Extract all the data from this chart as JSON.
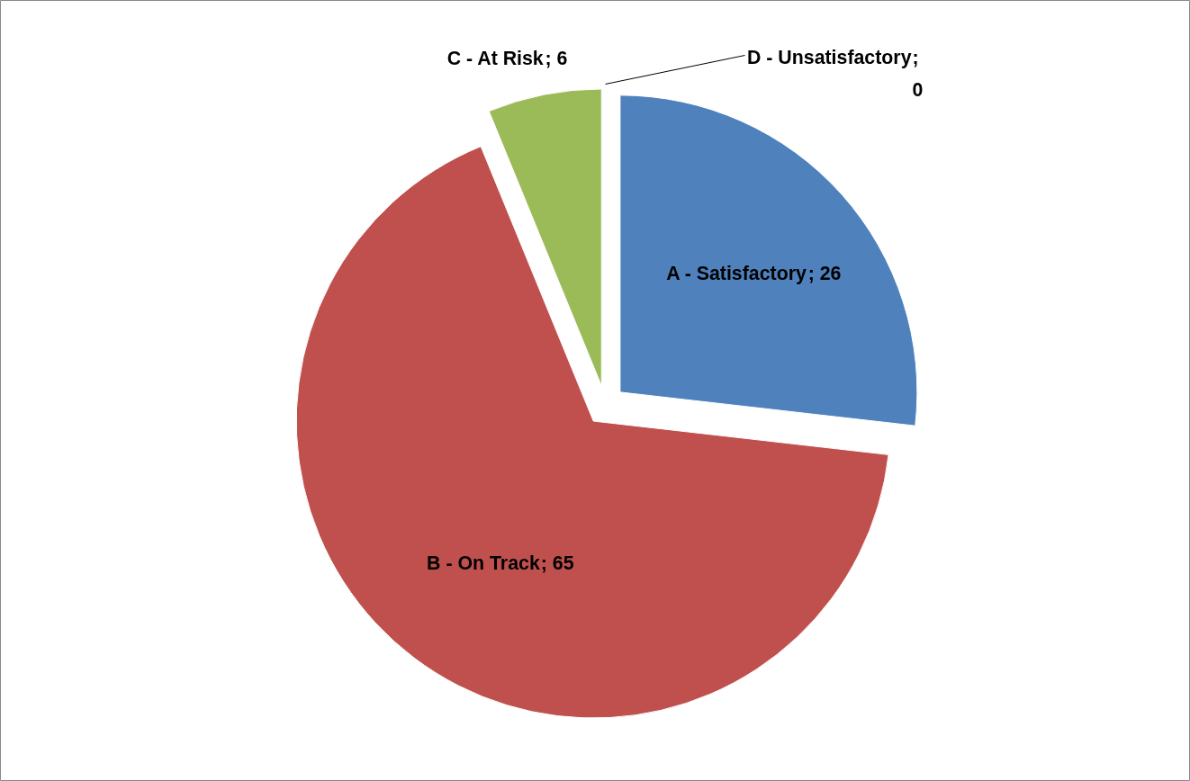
{
  "chart_data": {
    "type": "pie",
    "categories": [
      "A - Satisfactory",
      "B - On Track",
      "C - At Risk",
      "D - Unsatisfactory"
    ],
    "values": [
      26,
      65,
      6,
      0
    ],
    "colors": [
      "#4f81bd",
      "#c0504d",
      "#9bbb59",
      "#8064a2"
    ],
    "value_labels": [
      "; 26",
      "; 65",
      "; 6",
      ";\n0"
    ]
  }
}
